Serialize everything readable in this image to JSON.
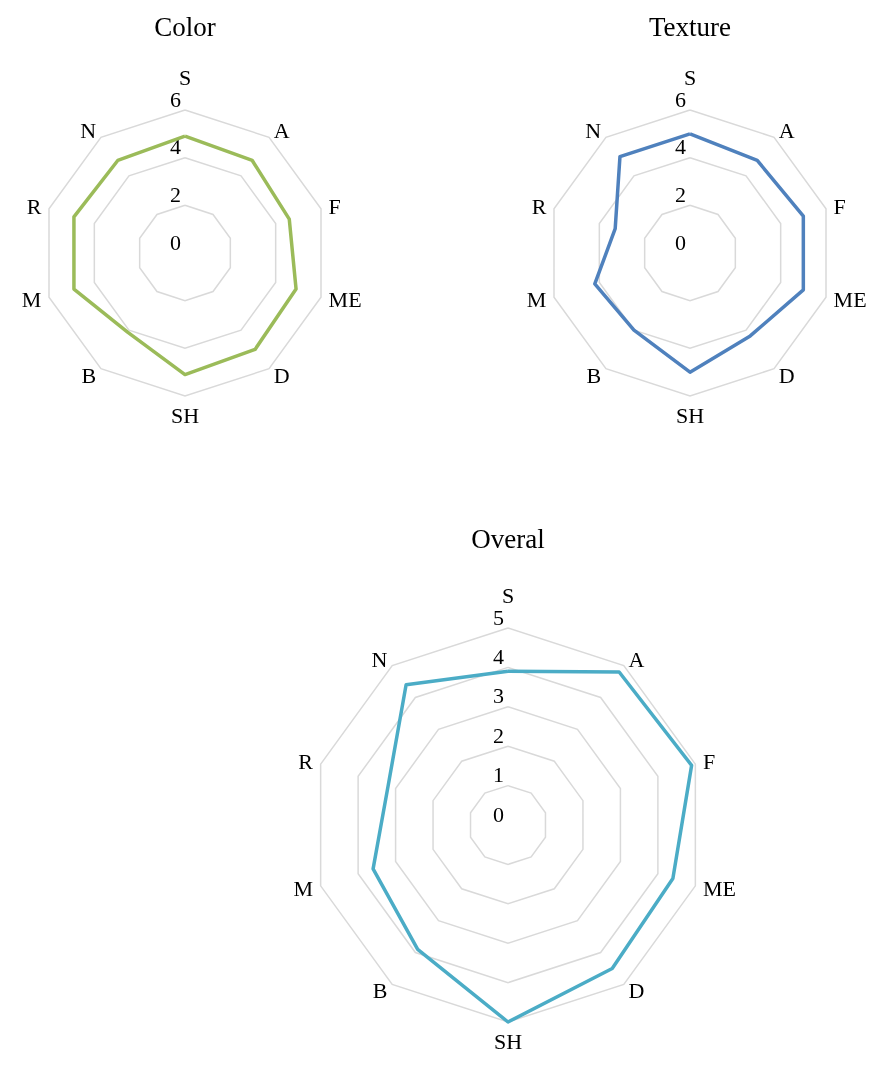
{
  "chart_data": [
    {
      "type": "radar",
      "title": "Color",
      "categories": [
        "S",
        "A",
        "F",
        "ME",
        "D",
        "SH",
        "B",
        "M",
        "R",
        "N"
      ],
      "series": [
        {
          "color": "#9bbb59",
          "values": [
            4.9,
            4.8,
            4.6,
            4.9,
            5.0,
            5.1,
            4.1,
            4.9,
            4.9,
            4.8
          ]
        }
      ],
      "ylim": [
        0,
        6
      ],
      "yticks": [
        0,
        2,
        4,
        6
      ],
      "grid": true,
      "marker": "none"
    },
    {
      "type": "radar",
      "title": "Texture",
      "categories": [
        "S",
        "A",
        "F",
        "ME",
        "D",
        "SH",
        "B",
        "M",
        "R",
        "N"
      ],
      "series": [
        {
          "color": "#4f81bd",
          "values": [
            5.0,
            4.8,
            5.0,
            5.0,
            4.3,
            5.0,
            4.0,
            4.2,
            3.3,
            5.0
          ]
        }
      ],
      "ylim": [
        0,
        6
      ],
      "yticks": [
        0,
        2,
        4,
        6
      ],
      "grid": true,
      "marker": "none"
    },
    {
      "type": "radar",
      "title": "Overal",
      "categories": [
        "S",
        "A",
        "F",
        "ME",
        "D",
        "SH",
        "B",
        "M",
        "R",
        "N"
      ],
      "series": [
        {
          "color": "#4bacc6",
          "values": [
            3.9,
            4.8,
            4.9,
            4.4,
            4.5,
            5.0,
            3.9,
            3.6,
            3.2,
            4.4
          ]
        }
      ],
      "ylim": [
        0,
        5
      ],
      "yticks": [
        0,
        1,
        2,
        3,
        4,
        5
      ],
      "grid": true,
      "marker": "none"
    }
  ]
}
